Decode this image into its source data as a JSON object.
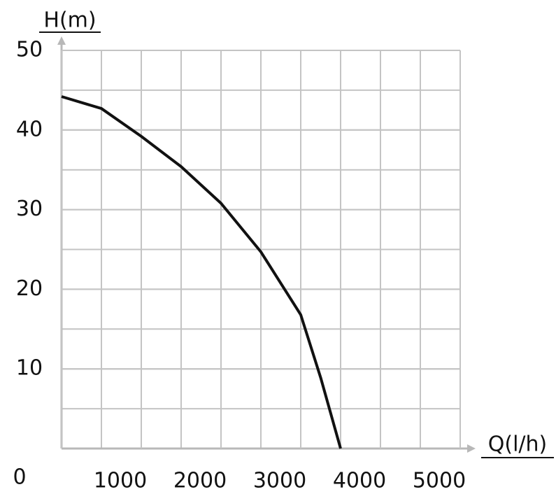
{
  "chart_data": {
    "type": "line",
    "y_label": "H(m)",
    "x_label": "Q(l/h)",
    "xlim": [
      0,
      5000
    ],
    "xticks": [
      0,
      1000,
      2000,
      3000,
      4000,
      5000
    ],
    "ylim": [
      0,
      50
    ],
    "yticks": [
      10,
      20,
      30,
      40,
      50
    ],
    "grid": true,
    "x": [
      0,
      500,
      1000,
      1500,
      2000,
      2500,
      3000,
      3250,
      3500
    ],
    "series": [
      {
        "color": "#111111",
        "values": [
          44.2,
          42.7,
          39.2,
          35.4,
          30.8,
          24.7,
          16.8,
          8.9,
          0
        ]
      }
    ]
  }
}
